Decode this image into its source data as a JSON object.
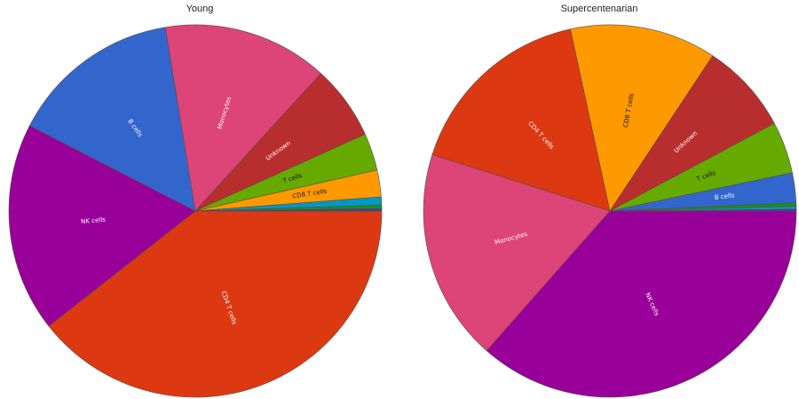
{
  "chart_data": [
    {
      "type": "pie",
      "title": "Young",
      "start_angle_deg": 0,
      "direction": "clockwise",
      "slices": [
        {
          "label": "CD4 T cells",
          "value": 39.0,
          "color": "#dc3912",
          "text_color": "#ffffff",
          "show_label": true
        },
        {
          "label": "NK cells",
          "value": 18.0,
          "color": "#990099",
          "text_color": "#ffffff",
          "show_label": true
        },
        {
          "label": "B cells",
          "value": 14.7,
          "color": "#3366cc",
          "text_color": "#ffffff",
          "show_label": true
        },
        {
          "label": "Monocytes",
          "value": 14.2,
          "color": "#dd4477",
          "text_color": "#ffffff",
          "show_label": true
        },
        {
          "label": "Unknown",
          "value": 6.4,
          "color": "#b82e2e",
          "text_color": "#ffffff",
          "show_label": true
        },
        {
          "label": "T cells",
          "value": 3.2,
          "color": "#66aa00",
          "text_color": "#111111",
          "show_label": true
        },
        {
          "label": "CD8 T cells",
          "value": 2.3,
          "color": "#ff9900",
          "text_color": "#111111",
          "show_label": true
        },
        {
          "label": "",
          "value": 0.7,
          "color": "#0099c6",
          "text_color": "#ffffff",
          "show_label": false
        },
        {
          "label": "",
          "value": 0.3,
          "color": "#109618",
          "text_color": "#ffffff",
          "show_label": false
        },
        {
          "label": "",
          "value": 0.2,
          "color": "#3b3eac",
          "text_color": "#ffffff",
          "show_label": false
        }
      ]
    },
    {
      "type": "pie",
      "title": "Supercentenarian",
      "start_angle_deg": 0,
      "direction": "clockwise",
      "slices": [
        {
          "label": "NK cells",
          "value": 36.5,
          "color": "#990099",
          "text_color": "#ffffff",
          "show_label": true
        },
        {
          "label": "Monocytes",
          "value": 18.4,
          "color": "#dd4477",
          "text_color": "#ffffff",
          "show_label": true
        },
        {
          "label": "CD4 T cells",
          "value": 16.7,
          "color": "#dc3912",
          "text_color": "#ffffff",
          "show_label": true
        },
        {
          "label": "CD8 T cells",
          "value": 12.7,
          "color": "#ff9900",
          "text_color": "#111111",
          "show_label": true
        },
        {
          "label": "Unknown",
          "value": 7.9,
          "color": "#b82e2e",
          "text_color": "#ffffff",
          "show_label": true
        },
        {
          "label": "T cells",
          "value": 4.5,
          "color": "#66aa00",
          "text_color": "#111111",
          "show_label": true
        },
        {
          "label": "B cells",
          "value": 2.6,
          "color": "#3366cc",
          "text_color": "#ffffff",
          "show_label": true
        },
        {
          "label": "",
          "value": 0.3,
          "color": "#109618",
          "text_color": "#ffffff",
          "show_label": false
        },
        {
          "label": "",
          "value": 0.25,
          "color": "#0099c6",
          "text_color": "#ffffff",
          "show_label": false
        },
        {
          "label": "",
          "value": 0.15,
          "color": "#3b3eac",
          "text_color": "#ffffff",
          "show_label": false
        }
      ]
    }
  ]
}
